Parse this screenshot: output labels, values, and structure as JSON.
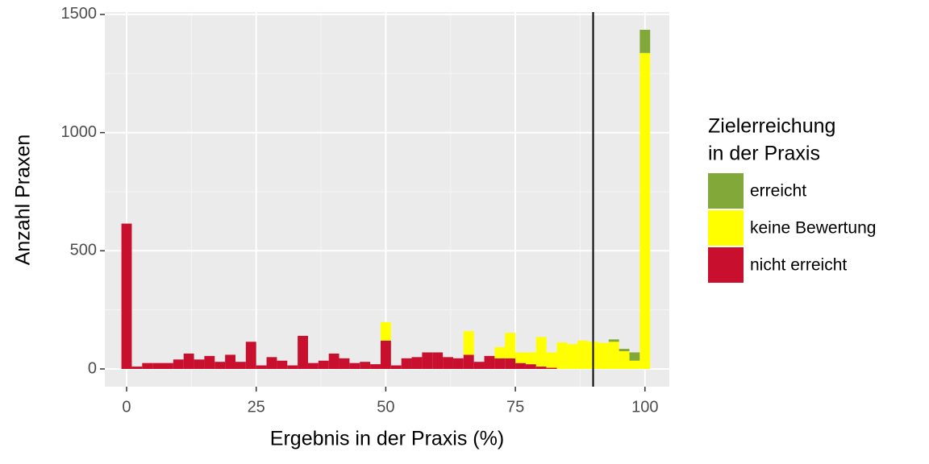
{
  "chart_data": {
    "type": "histogram",
    "x_label": "Ergebnis in der Praxis (%)",
    "y_label": "Anzahl Praxen",
    "legend_title": [
      "Zielerreichung",
      "in der Praxis"
    ],
    "legend_position": "right",
    "grid": true,
    "vline": 90,
    "bins": [
      -1,
      1,
      3,
      5,
      7,
      9,
      11,
      13,
      15,
      17,
      19,
      21,
      23,
      25,
      27,
      29,
      31,
      33,
      35,
      37,
      39,
      41,
      43,
      45,
      47,
      49,
      51,
      53,
      55,
      57,
      59,
      61,
      63,
      65,
      67,
      69,
      71,
      73,
      75,
      77,
      79,
      81,
      83,
      85,
      87,
      89,
      91,
      93,
      95,
      97,
      99,
      101
    ],
    "series": [
      {
        "name": "erreicht",
        "color": "#83a83a",
        "values": [
          0,
          0,
          0,
          0,
          0,
          0,
          0,
          0,
          0,
          0,
          0,
          0,
          0,
          0,
          0,
          0,
          0,
          0,
          0,
          0,
          0,
          0,
          0,
          0,
          0,
          0,
          0,
          0,
          0,
          0,
          0,
          0,
          0,
          0,
          0,
          0,
          0,
          0,
          0,
          0,
          0,
          0,
          0,
          0,
          0,
          0,
          0,
          10,
          10,
          35,
          98
        ]
      },
      {
        "name": "keine Bewertung",
        "color": "#ffff00",
        "values": [
          0,
          0,
          0,
          0,
          0,
          0,
          0,
          0,
          0,
          0,
          0,
          0,
          0,
          0,
          0,
          0,
          0,
          0,
          0,
          0,
          0,
          0,
          0,
          0,
          0,
          78,
          0,
          0,
          0,
          0,
          0,
          0,
          0,
          100,
          0,
          0,
          47,
          108,
          45,
          50,
          125,
          65,
          112,
          105,
          120,
          115,
          110,
          115,
          75,
          35,
          1337
        ]
      },
      {
        "name": "nicht erreicht",
        "color": "#c8102e",
        "values": [
          615,
          10,
          25,
          25,
          25,
          40,
          65,
          40,
          55,
          30,
          60,
          30,
          115,
          15,
          50,
          35,
          15,
          140,
          25,
          35,
          65,
          45,
          25,
          30,
          20,
          120,
          15,
          45,
          50,
          70,
          70,
          50,
          45,
          60,
          30,
          55,
          45,
          45,
          25,
          20,
          10,
          5,
          0,
          0,
          0,
          0,
          0,
          0,
          0,
          0,
          0
        ]
      }
    ],
    "xlim": [
      -4.2,
      104.7
    ],
    "xticks": [
      0,
      25,
      50,
      75,
      100
    ],
    "ylim": [
      -75,
      1510
    ],
    "yticks": [
      0,
      500,
      1000,
      1500
    ]
  }
}
